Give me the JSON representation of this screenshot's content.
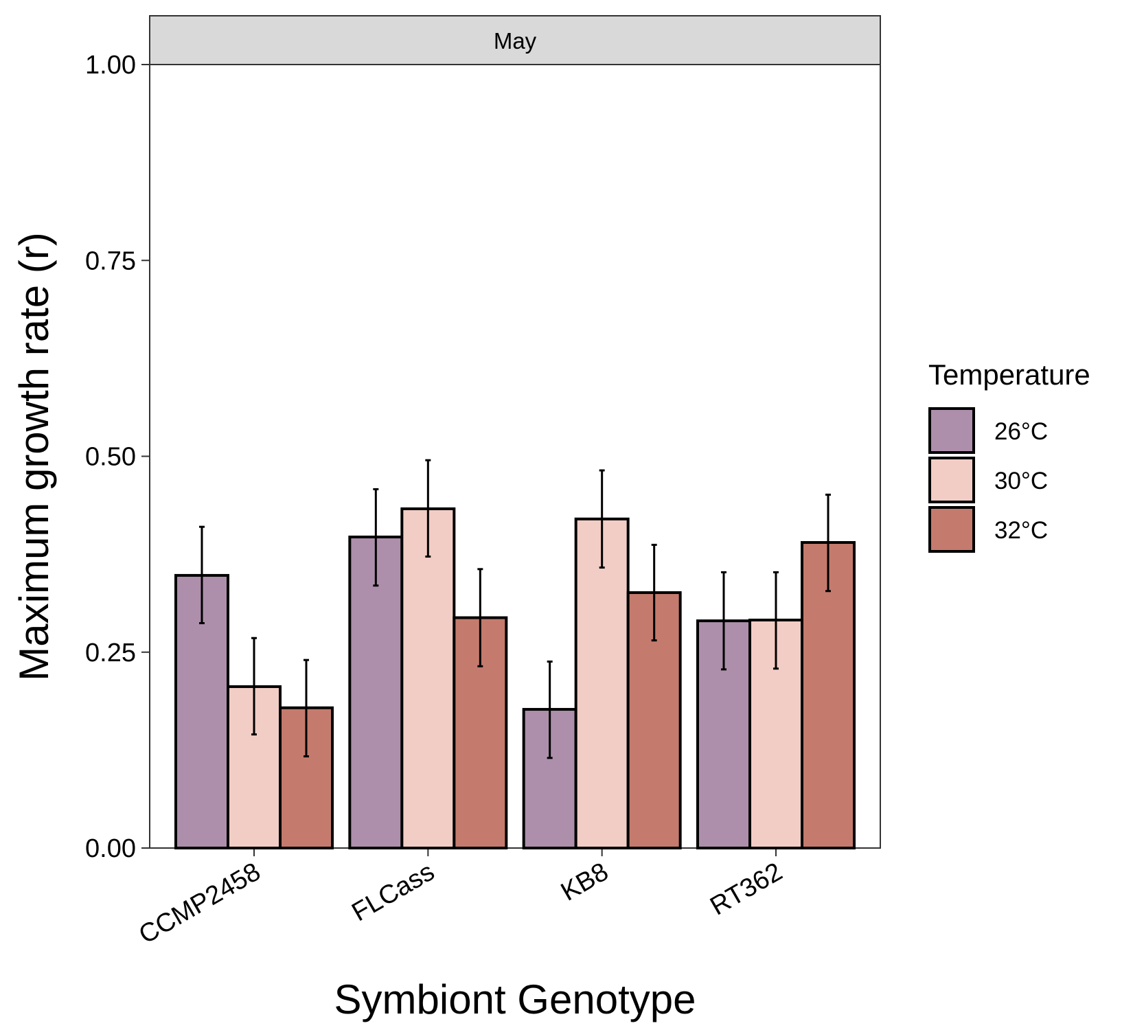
{
  "chart_data": {
    "type": "bar",
    "facet_label": "May",
    "xlabel": "Symbiont Genotype",
    "ylabel": "Maximum growth rate (r)",
    "ylim": [
      0,
      1.0
    ],
    "yticks": [
      0.0,
      0.25,
      0.5,
      0.75,
      1.0
    ],
    "ytick_labels": [
      "0.00",
      "0.25",
      "0.50",
      "0.75",
      "1.00"
    ],
    "categories": [
      "CCMP2458",
      "FLCass",
      "KB8",
      "RT362"
    ],
    "legend": {
      "title": "Temperature",
      "position": "right"
    },
    "series": [
      {
        "name": "26°C",
        "color": "#ad8fab",
        "values": [
          0.348,
          0.397,
          0.177,
          0.29
        ],
        "err_low": [
          0.287,
          0.335,
          0.115,
          0.228
        ],
        "err_high": [
          0.41,
          0.458,
          0.238,
          0.352
        ]
      },
      {
        "name": "30°C",
        "color": "#f2cdc5",
        "values": [
          0.206,
          0.433,
          0.42,
          0.291
        ],
        "err_low": [
          0.145,
          0.372,
          0.358,
          0.229
        ],
        "err_high": [
          0.268,
          0.495,
          0.482,
          0.352
        ]
      },
      {
        "name": "32°C",
        "color": "#c47b6d",
        "values": [
          0.179,
          0.294,
          0.326,
          0.39
        ],
        "err_low": [
          0.117,
          0.232,
          0.265,
          0.328
        ],
        "err_high": [
          0.24,
          0.356,
          0.387,
          0.451
        ]
      }
    ]
  }
}
